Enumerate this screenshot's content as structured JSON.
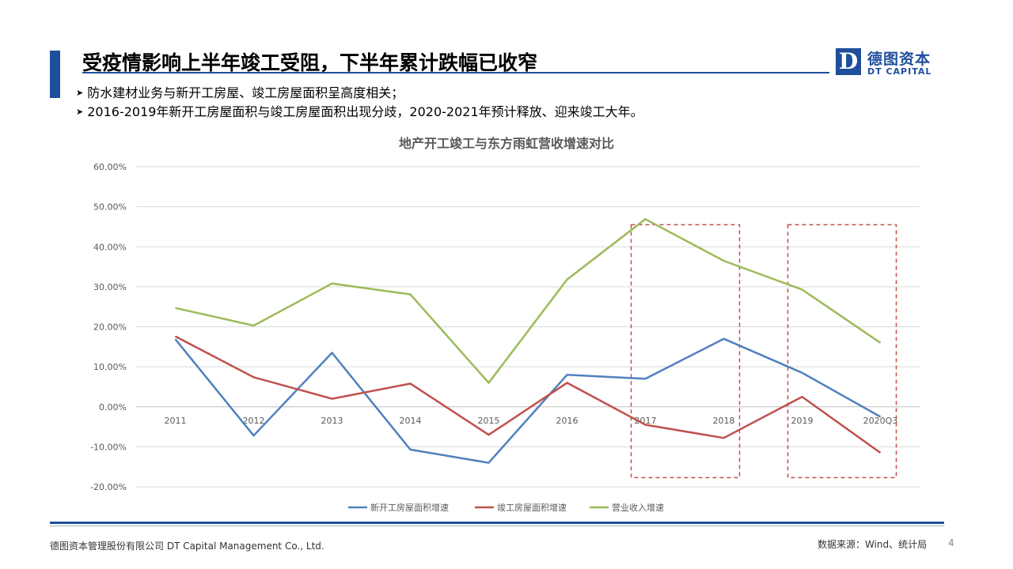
{
  "slide": {
    "title": "受疫情影响上半年竣工受阻，下半年累计跌幅已收窄",
    "bullets": [
      "防水建材业务与新开工房屋、竣工房屋面积呈高度相关；",
      "2016-2019年新开工房屋面积与竣工房屋面积出现分歧，2020-2021年预计释放、迎来竣工大年。"
    ],
    "bullet_icon": "arrow-bullet-icon"
  },
  "logo": {
    "cn": "德图资本",
    "en": "DT CAPITAL",
    "mark": "D",
    "color": "#1f4e9c"
  },
  "footer": {
    "company": "德图资本管理股份有限公司  DT Capital Management  Co., Ltd.",
    "source": "数据来源：Wind、统计局",
    "page": "4"
  },
  "chart_data": {
    "type": "line",
    "title": "地产开工竣工与东方雨虹营收增速对比",
    "categories": [
      "2011",
      "2012",
      "2013",
      "2014",
      "2015",
      "2016",
      "2017",
      "2018",
      "2019",
      "2020Q3"
    ],
    "ylim": [
      -0.2,
      0.6
    ],
    "yticks": [
      -0.2,
      -0.1,
      0,
      0.1,
      0.2,
      0.3,
      0.4,
      0.5,
      0.6
    ],
    "ytick_labels": [
      "-20.00%",
      "-10.00%",
      "0.00%",
      "10.00%",
      "20.00%",
      "30.00%",
      "40.00%",
      "50.00%",
      "60.00%"
    ],
    "grid": true,
    "legend_position": "bottom",
    "series": [
      {
        "name": "新开工房屋面积增速",
        "color": "#4f81bd",
        "values": [
          0.169,
          -0.072,
          0.135,
          -0.107,
          -0.14,
          0.08,
          0.07,
          0.17,
          0.085,
          -0.025
        ]
      },
      {
        "name": "竣工房屋面积增速",
        "color": "#c0504d",
        "values": [
          0.176,
          0.074,
          0.02,
          0.058,
          -0.07,
          0.06,
          -0.045,
          -0.078,
          0.025,
          -0.115
        ]
      },
      {
        "name": "营业收入增速",
        "color": "#9bbb59",
        "values": [
          0.247,
          0.203,
          0.308,
          0.281,
          0.06,
          0.318,
          0.469,
          0.365,
          0.293,
          0.16
        ]
      }
    ],
    "highlight_boxes": [
      {
        "from": "2017",
        "to": "2018"
      },
      {
        "from": "2019",
        "to": "2020Q3"
      }
    ]
  }
}
